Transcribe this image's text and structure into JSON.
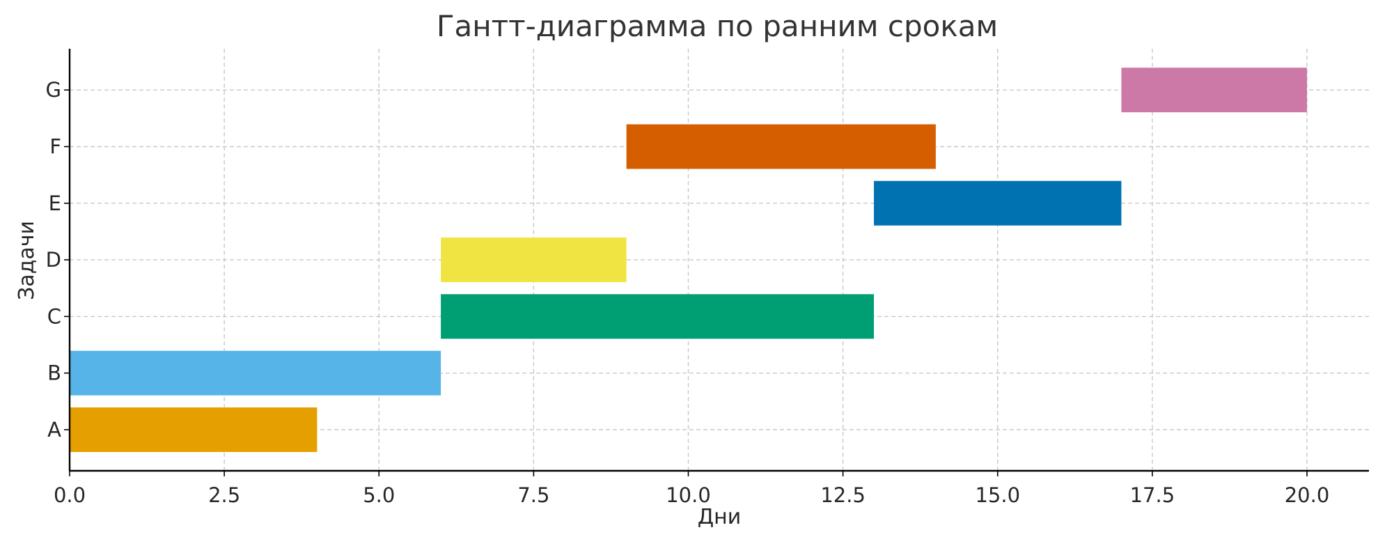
{
  "chart_data": {
    "type": "bar",
    "orientation": "horizontal",
    "title": "Гантт-диаграмма по ранним срокам",
    "xlabel": "Дни",
    "ylabel": "Задачи",
    "xlim": [
      0,
      21
    ],
    "xticks": [
      0,
      2.5,
      5,
      7.5,
      10,
      12.5,
      15,
      17.5,
      20
    ],
    "xtick_labels": [
      "0.0",
      "2.5",
      "5.0",
      "7.5",
      "10.0",
      "12.5",
      "15.0",
      "17.5",
      "20.0"
    ],
    "grid": true,
    "categories": [
      "A",
      "B",
      "C",
      "D",
      "E",
      "F",
      "G"
    ],
    "tasks": [
      {
        "name": "A",
        "start": 0,
        "end": 4,
        "color": "#E69F00"
      },
      {
        "name": "B",
        "start": 0,
        "end": 6,
        "color": "#56B4E9"
      },
      {
        "name": "C",
        "start": 6,
        "end": 13,
        "color": "#009E73"
      },
      {
        "name": "D",
        "start": 6,
        "end": 9,
        "color": "#F0E442"
      },
      {
        "name": "E",
        "start": 13,
        "end": 17,
        "color": "#0072B2"
      },
      {
        "name": "F",
        "start": 9,
        "end": 14,
        "color": "#D55E00"
      },
      {
        "name": "G",
        "start": 17,
        "end": 20,
        "color": "#CC79A7"
      }
    ]
  }
}
